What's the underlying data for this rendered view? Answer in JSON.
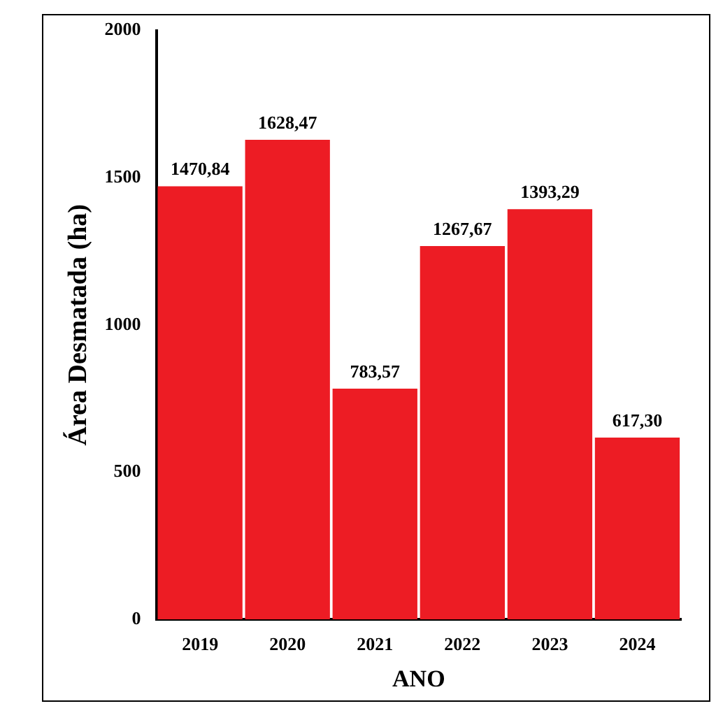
{
  "chart_data": {
    "type": "bar",
    "xlabel": "ANO",
    "ylabel": "Área Desmatada (ha)",
    "categories": [
      "2019",
      "2020",
      "2021",
      "2022",
      "2023",
      "2024"
    ],
    "values": [
      1470.84,
      1628.47,
      783.57,
      1267.67,
      1393.29,
      617.3
    ],
    "value_labels": [
      "1470,84",
      "1628,47",
      "783,57",
      "1267,67",
      "1393,29",
      "617,30"
    ],
    "color": "#ed1c24",
    "ylim": [
      0,
      2000
    ],
    "yticks": [
      0,
      500,
      1000,
      1500,
      2000
    ],
    "grid": false,
    "legend": false
  }
}
